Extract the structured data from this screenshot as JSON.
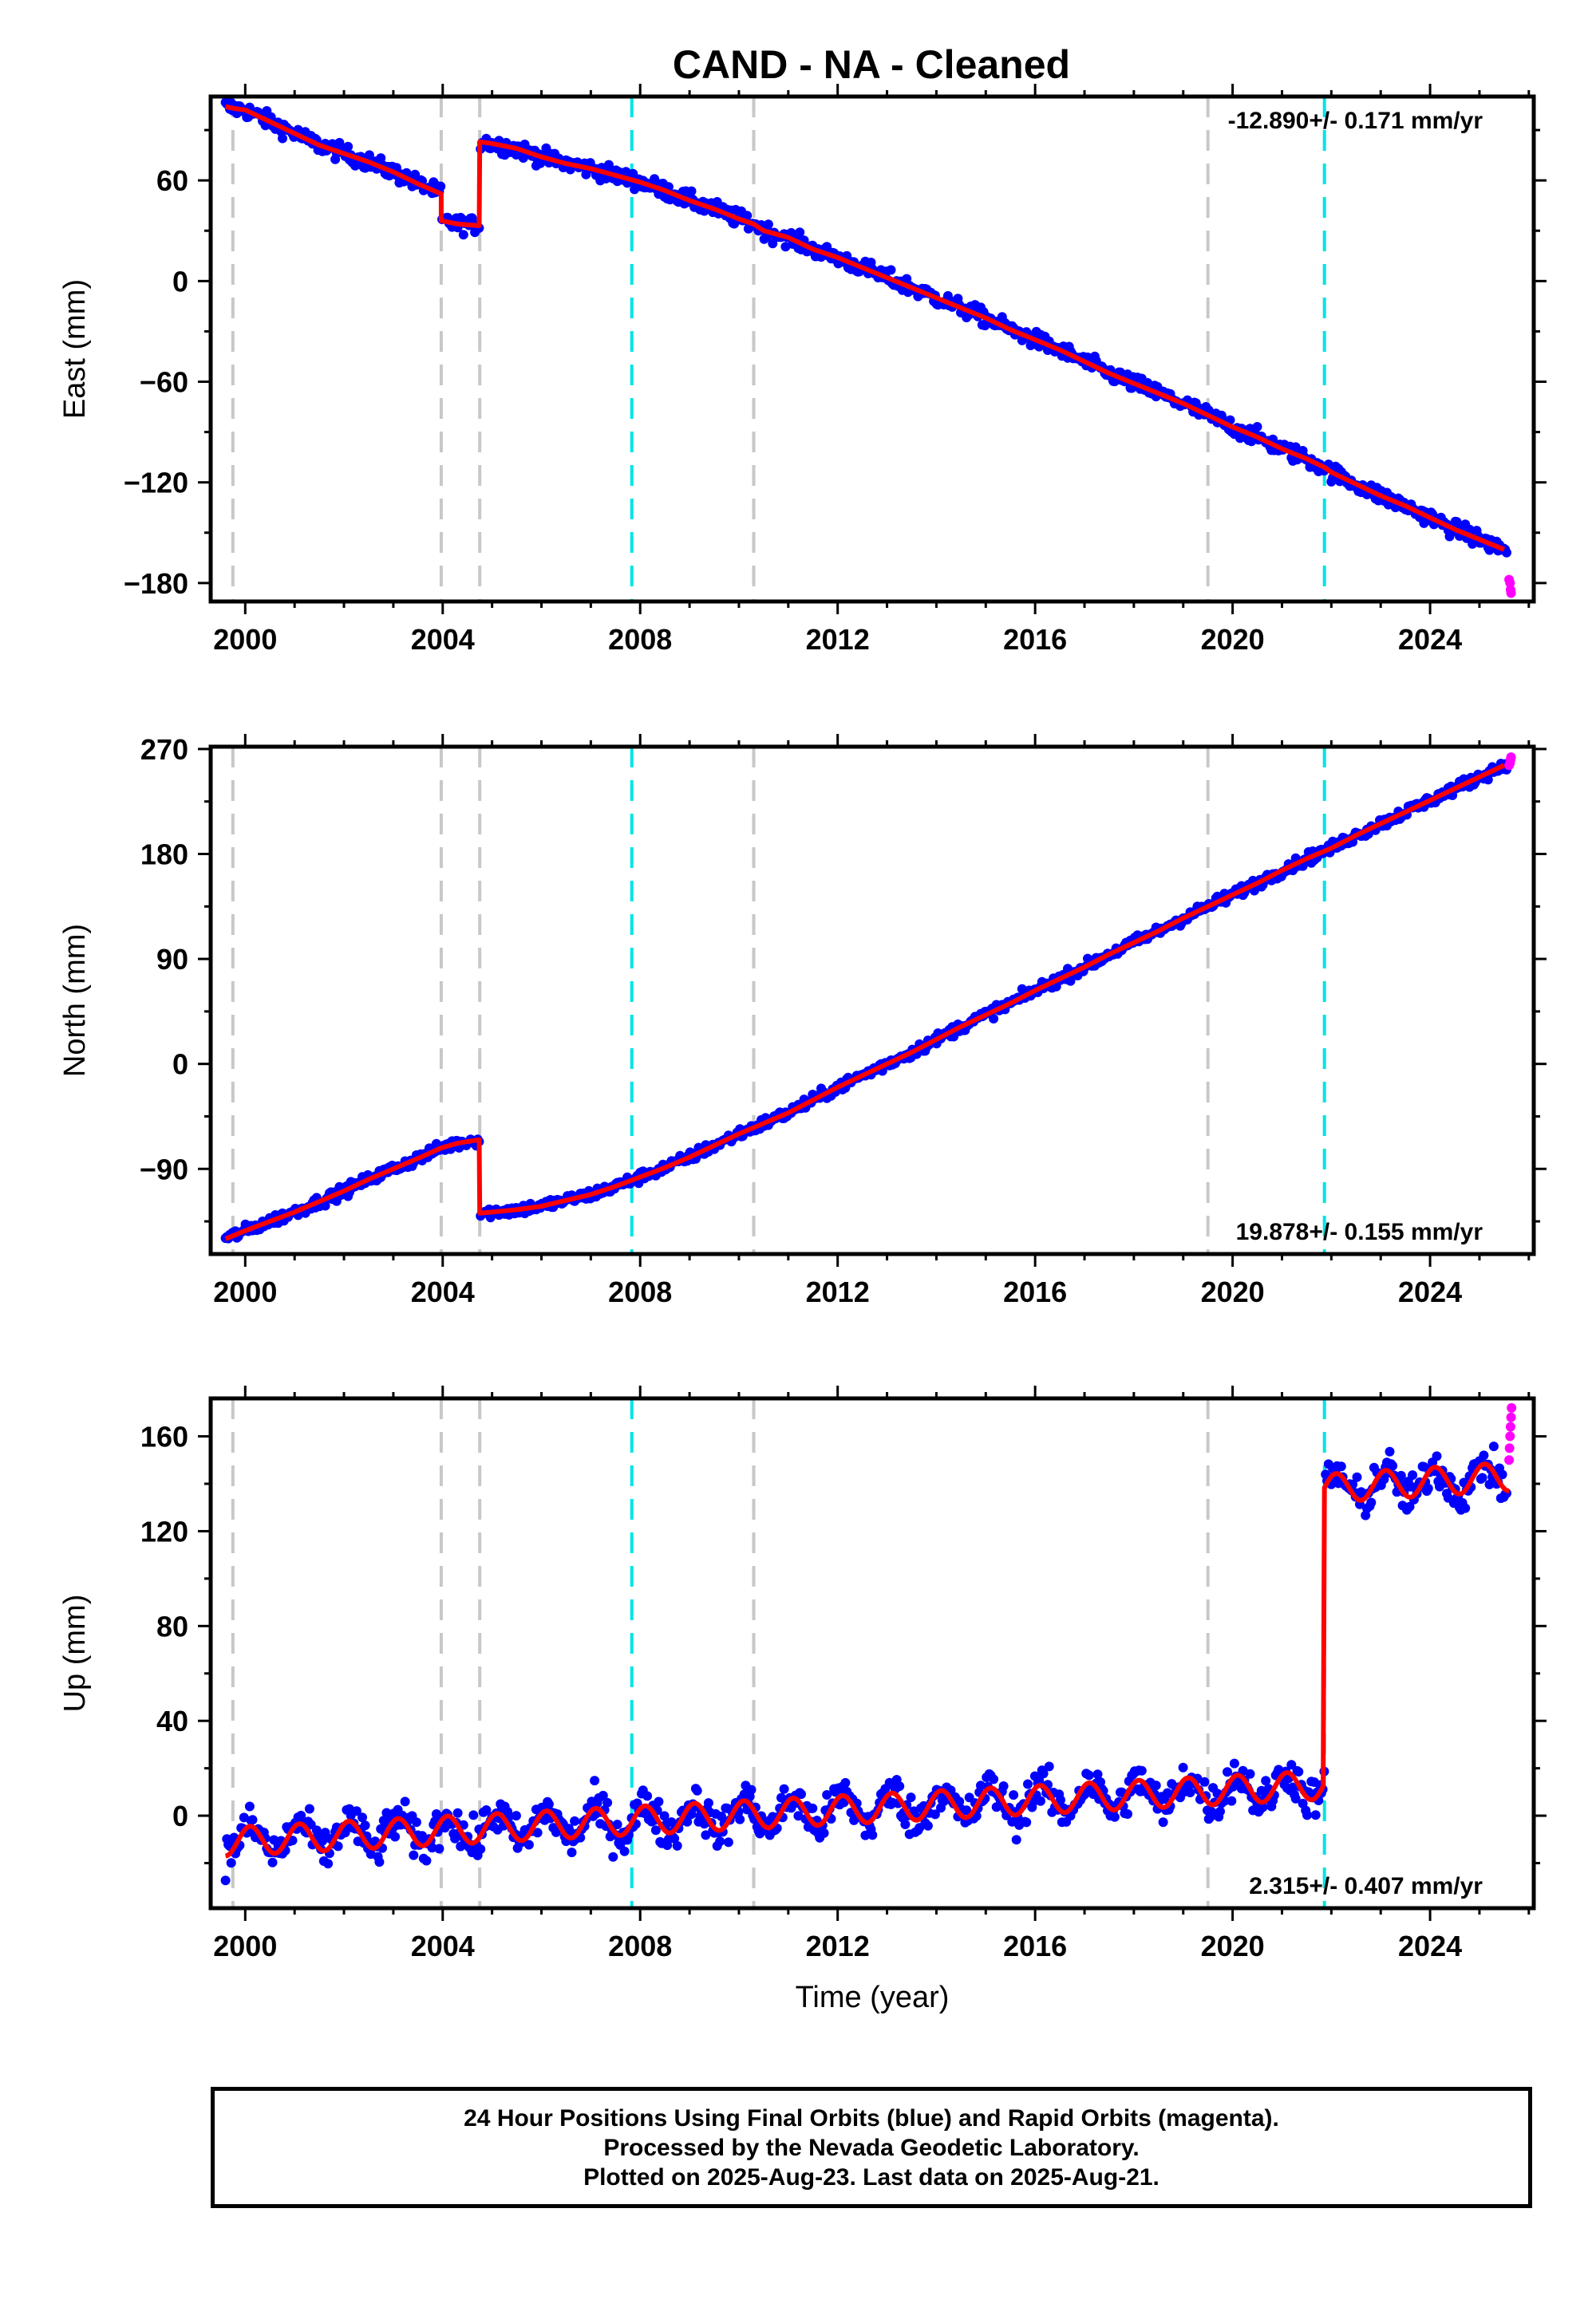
{
  "figure": {
    "title": "CAND  - NA - Cleaned"
  },
  "colors": {
    "final": "#0000ff",
    "rapid": "#ff00ff",
    "model": "#ff0000",
    "eq_line": "#c8c8c8",
    "equip_line": "#00e5e5"
  },
  "chart_data": [
    {
      "type": "scatter",
      "panel": "east",
      "title": "",
      "xlabel": "",
      "ylabel": "East (mm)",
      "xlim": [
        1999.3,
        2026.1
      ],
      "ylim": [
        -191,
        110
      ],
      "xticks": [
        2000,
        2004,
        2008,
        2012,
        2016,
        2020,
        2024
      ],
      "xtick_labels": [
        "2000",
        "2004",
        "2008",
        "2012",
        "2016",
        "2020",
        "2024"
      ],
      "yticks": [
        -180,
        -120,
        -60,
        0,
        60
      ],
      "ytick_labels": [
        "−180",
        "−120",
        "−60",
        "0",
        "60"
      ],
      "rate_label": "-12.890+/- 0.171 mm/yr",
      "rate_position": "top-right",
      "grid": false,
      "gray_dashed_lines": [
        1999.75,
        2003.97,
        2004.75,
        2010.3,
        2019.5
      ],
      "cyan_dashed_lines": [
        2007.83,
        2021.86
      ],
      "model": {
        "x": [
          1999.6,
          1999.75,
          2000.0,
          2000.5,
          2001.0,
          2001.5,
          2002.0,
          2002.5,
          2003.0,
          2003.5,
          2003.97,
          2003.97,
          2004.3,
          2004.74,
          2004.75,
          2005.0,
          2005.5,
          2006.0,
          2006.5,
          2007.0,
          2007.5,
          2008.0,
          2008.5,
          2009.0,
          2009.5,
          2010.0,
          2010.3,
          2010.5,
          2011.0,
          2011.5,
          2012.0,
          2012.5,
          2013.0,
          2013.5,
          2014.0,
          2014.5,
          2015.0,
          2015.5,
          2016.0,
          2016.5,
          2017.0,
          2017.5,
          2018.0,
          2018.5,
          2019.0,
          2019.5,
          2020.0,
          2020.5,
          2021.0,
          2021.5,
          2021.86,
          2022.0,
          2022.5,
          2023.0,
          2023.5,
          2024.0,
          2024.5,
          2025.0,
          2025.5
        ],
        "y": [
          104,
          103,
          102,
          95,
          88,
          81,
          76,
          71,
          65,
          58,
          52,
          36,
          34,
          33,
          83,
          82,
          79,
          74,
          70,
          67,
          63,
          59,
          54,
          48,
          43,
          37,
          34,
          30,
          26,
          19,
          14,
          8,
          2,
          -4,
          -10,
          -16,
          -22,
          -29,
          -35,
          -41,
          -48,
          -55,
          -61,
          -67,
          -73,
          -80,
          -87,
          -93,
          -100,
          -106,
          -111,
          -114,
          -121,
          -128,
          -134,
          -141,
          -148,
          -154,
          -160
        ]
      },
      "final_orbit_points": {
        "x_range": [
          1999.6,
          2025.55
        ],
        "follows": "model",
        "scatter_mm": 3.5
      },
      "rapid_orbit_points": {
        "x": [
          2025.6,
          2025.62,
          2025.63,
          2025.64
        ],
        "y": [
          -178,
          -180,
          -184,
          -186
        ]
      }
    },
    {
      "type": "scatter",
      "panel": "north",
      "title": "",
      "xlabel": "",
      "ylabel": "North (mm)",
      "xlim": [
        1999.3,
        2026.1
      ],
      "ylim": [
        -163,
        272
      ],
      "xticks": [
        2000,
        2004,
        2008,
        2012,
        2016,
        2020,
        2024
      ],
      "xtick_labels": [
        "2000",
        "2004",
        "2008",
        "2012",
        "2016",
        "2020",
        "2024"
      ],
      "yticks": [
        -90,
        0,
        90,
        180,
        270
      ],
      "ytick_labels": [
        "−90",
        "0",
        "90",
        "180",
        "270"
      ],
      "rate_label": "19.878+/- 0.155 mm/yr",
      "rate_position": "bottom-right",
      "grid": false,
      "gray_dashed_lines": [
        1999.75,
        2003.97,
        2004.75,
        2010.3,
        2019.5
      ],
      "cyan_dashed_lines": [
        2007.83,
        2021.86
      ],
      "model": {
        "x": [
          1999.6,
          2000.0,
          2000.5,
          2001.0,
          2001.5,
          2002.0,
          2002.5,
          2003.0,
          2003.5,
          2003.97,
          2004.3,
          2004.74,
          2004.75,
          2005.0,
          2005.5,
          2006.0,
          2006.5,
          2007.0,
          2007.5,
          2008.0,
          2008.5,
          2009.0,
          2009.5,
          2010.0,
          2010.5,
          2011.0,
          2011.5,
          2012.0,
          2012.5,
          2013.0,
          2013.5,
          2014.0,
          2014.5,
          2015.0,
          2015.5,
          2016.0,
          2016.5,
          2017.0,
          2017.5,
          2018.0,
          2018.5,
          2019.0,
          2019.5,
          2020.0,
          2020.5,
          2021.0,
          2021.5,
          2022.0,
          2022.5,
          2023.0,
          2023.5,
          2024.0,
          2024.5,
          2025.0,
          2025.5
        ],
        "y": [
          -150,
          -143,
          -135,
          -127,
          -118,
          -109,
          -99,
          -90,
          -81,
          -72,
          -68,
          -65,
          -128,
          -127,
          -125,
          -122,
          -117,
          -112,
          -105,
          -97,
          -89,
          -80,
          -70,
          -60,
          -51,
          -42,
          -31,
          -20,
          -10,
          0,
          10,
          21,
          32,
          42,
          52,
          63,
          73,
          83,
          94,
          104,
          114,
          125,
          135,
          145,
          155,
          166,
          176,
          185,
          196,
          206,
          216,
          226,
          236,
          246,
          256
        ]
      },
      "final_orbit_points": {
        "x_range": [
          1999.6,
          2025.55
        ],
        "follows": "model",
        "scatter_mm": 3.5
      },
      "rapid_orbit_points": {
        "x": [
          2025.6,
          2025.62,
          2025.63,
          2025.64
        ],
        "y": [
          256,
          258,
          261,
          263
        ]
      }
    },
    {
      "type": "scatter",
      "panel": "up",
      "title": "",
      "xlabel": "Time (year)",
      "ylabel": "Up (mm)",
      "xlim": [
        1999.3,
        2026.1
      ],
      "ylim": [
        -39,
        176
      ],
      "xticks": [
        2000,
        2004,
        2008,
        2012,
        2016,
        2020,
        2024
      ],
      "xtick_labels": [
        "2000",
        "2004",
        "2008",
        "2012",
        "2016",
        "2020",
        "2024"
      ],
      "yticks": [
        0,
        40,
        80,
        120,
        160
      ],
      "ytick_labels": [
        "0",
        "40",
        "80",
        "120",
        "160"
      ],
      "rate_label": "2.315+/- 0.407 mm/yr",
      "rate_position": "bottom-right",
      "grid": false,
      "gray_dashed_lines": [
        1999.75,
        2003.97,
        2004.75,
        2010.3,
        2019.5
      ],
      "cyan_dashed_lines": [
        2007.83,
        2021.86
      ],
      "model": {
        "trend_segments": [
          {
            "x_start": 1999.6,
            "x_end": 2021.86,
            "y_start": -11,
            "y_end": 13
          },
          {
            "x_start": 2021.86,
            "x_end": 2025.6,
            "y_start": 138,
            "y_end": 143
          }
        ],
        "annual_amplitude": 6,
        "annual_phase_year": 0.1
      },
      "final_orbit_points": {
        "x_range": [
          1999.6,
          2025.55
        ],
        "follows": "model",
        "scatter_mm": 6
      },
      "rapid_orbit_points": {
        "x": [
          2025.6,
          2025.61,
          2025.62,
          2025.63,
          2025.64,
          2025.65
        ],
        "y": [
          150,
          155,
          160,
          164,
          168,
          172
        ]
      }
    }
  ],
  "footer": {
    "line1": "24 Hour Positions Using Final Orbits (blue) and Rapid Orbits (magenta).",
    "line2": "Processed by the Nevada Geodetic Laboratory.",
    "line3": "Plotted on 2025-Aug-23. Last data on 2025-Aug-21."
  }
}
